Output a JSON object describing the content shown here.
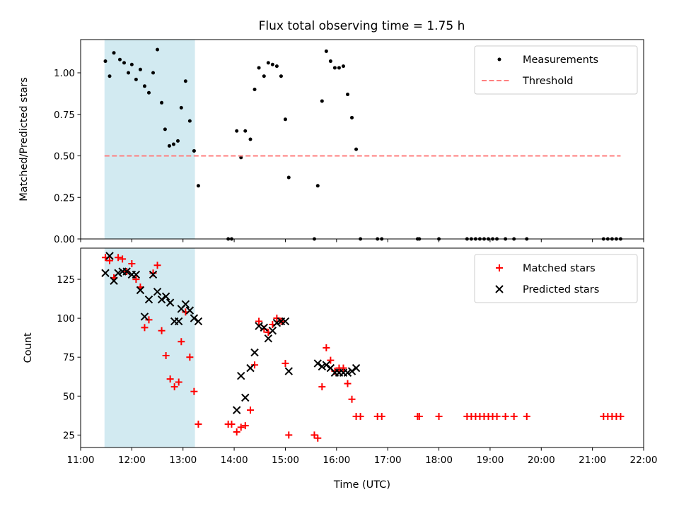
{
  "chart_data": [
    {
      "type": "scatter",
      "title": "Flux total observing time = 1.75 h",
      "xlabel": "",
      "ylabel": "Matched/Predicted stars",
      "xlim": [
        "11:00",
        "22:00"
      ],
      "ylim": [
        0,
        1.2
      ],
      "yticks": [
        "0.00",
        "0.25",
        "0.50",
        "0.75",
        "1.00"
      ],
      "highlight_span": [
        "11:28",
        "13:14"
      ],
      "highlight_color": "#add8e6",
      "legend_position": "top-right",
      "legend": [
        "Measurements",
        "Threshold"
      ],
      "series": [
        {
          "name": "Measurements",
          "color": "#000000",
          "marker": "dot",
          "points": [
            [
              "11:29",
              1.07
            ],
            [
              "11:34",
              0.98
            ],
            [
              "11:39",
              1.12
            ],
            [
              "11:46",
              1.08
            ],
            [
              "11:51",
              1.06
            ],
            [
              "11:56",
              1.0
            ],
            [
              "12:00",
              1.05
            ],
            [
              "12:05",
              0.96
            ],
            [
              "12:10",
              1.02
            ],
            [
              "12:15",
              0.92
            ],
            [
              "12:20",
              0.88
            ],
            [
              "12:25",
              1.0
            ],
            [
              "12:30",
              1.14
            ],
            [
              "12:35",
              0.82
            ],
            [
              "12:39",
              0.66
            ],
            [
              "12:44",
              0.56
            ],
            [
              "12:49",
              0.57
            ],
            [
              "12:54",
              0.59
            ],
            [
              "12:58",
              0.79
            ],
            [
              "13:03",
              0.95
            ],
            [
              "13:08",
              0.71
            ],
            [
              "13:13",
              0.53
            ],
            [
              "13:18",
              0.32
            ],
            [
              "13:53",
              0.0
            ],
            [
              "13:57",
              0.0
            ],
            [
              "14:03",
              0.65
            ],
            [
              "14:08",
              0.49
            ],
            [
              "14:13",
              0.65
            ],
            [
              "14:19",
              0.6
            ],
            [
              "14:24",
              0.9
            ],
            [
              "14:29",
              1.03
            ],
            [
              "14:35",
              0.98
            ],
            [
              "14:40",
              1.06
            ],
            [
              "14:45",
              1.05
            ],
            [
              "14:50",
              1.04
            ],
            [
              "14:55",
              0.98
            ],
            [
              "15:00",
              0.72
            ],
            [
              "15:04",
              0.37
            ],
            [
              "15:34",
              0.0
            ],
            [
              "15:38",
              0.32
            ],
            [
              "15:43",
              0.83
            ],
            [
              "15:48",
              1.13
            ],
            [
              "15:53",
              1.07
            ],
            [
              "15:58",
              1.03
            ],
            [
              "16:03",
              1.03
            ],
            [
              "16:08",
              1.04
            ],
            [
              "16:13",
              0.87
            ],
            [
              "16:18",
              0.73
            ],
            [
              "16:23",
              0.54
            ],
            [
              "16:28",
              0.0
            ],
            [
              "16:48",
              0.0
            ],
            [
              "16:53",
              0.0
            ],
            [
              "17:35",
              0.0
            ],
            [
              "17:37",
              0.0
            ],
            [
              "18:00",
              0.0
            ],
            [
              "18:33",
              0.0
            ],
            [
              "18:38",
              0.0
            ],
            [
              "18:43",
              0.0
            ],
            [
              "18:48",
              0.0
            ],
            [
              "18:53",
              0.0
            ],
            [
              "18:58",
              0.0
            ],
            [
              "19:03",
              0.0
            ],
            [
              "19:08",
              0.0
            ],
            [
              "19:18",
              0.0
            ],
            [
              "19:28",
              0.0
            ],
            [
              "19:43",
              0.0
            ],
            [
              "21:13",
              0.0
            ],
            [
              "21:18",
              0.0
            ],
            [
              "21:23",
              0.0
            ],
            [
              "21:28",
              0.0
            ],
            [
              "21:33",
              0.0
            ]
          ]
        },
        {
          "name": "Threshold",
          "color": "#ff7f7f",
          "style": "dashed",
          "points": [
            [
              "11:28",
              0.5
            ],
            [
              "21:33",
              0.5
            ]
          ]
        }
      ]
    },
    {
      "type": "scatter",
      "title": "",
      "xlabel": "Time (UTC)",
      "ylabel": "Count",
      "xlim": [
        "11:00",
        "22:00"
      ],
      "ylim": [
        17,
        145
      ],
      "xticks": [
        "11:00",
        "12:00",
        "13:00",
        "14:00",
        "15:00",
        "16:00",
        "17:00",
        "18:00",
        "19:00",
        "20:00",
        "21:00",
        "22:00"
      ],
      "yticks": [
        "25",
        "50",
        "75",
        "100",
        "125"
      ],
      "highlight_span": [
        "11:28",
        "13:14"
      ],
      "highlight_color": "#add8e6",
      "legend_position": "top-right",
      "legend": [
        "Matched stars",
        "Predicted stars"
      ],
      "series": [
        {
          "name": "Matched stars",
          "color": "#ff0000",
          "marker": "plus",
          "points": [
            [
              "11:29",
              139
            ],
            [
              "11:34",
              137
            ],
            [
              "11:39",
              126
            ],
            [
              "11:44",
              139
            ],
            [
              "11:49",
              138
            ],
            [
              "11:54",
              130
            ],
            [
              "12:00",
              135
            ],
            [
              "12:05",
              125
            ],
            [
              "12:10",
              120
            ],
            [
              "12:15",
              94
            ],
            [
              "12:20",
              99
            ],
            [
              "12:25",
              129
            ],
            [
              "12:30",
              134
            ],
            [
              "12:35",
              92
            ],
            [
              "12:40",
              76
            ],
            [
              "12:45",
              61
            ],
            [
              "12:50",
              56
            ],
            [
              "12:55",
              59
            ],
            [
              "12:58",
              85
            ],
            [
              "13:03",
              104
            ],
            [
              "13:08",
              75
            ],
            [
              "13:13",
              53
            ],
            [
              "13:18",
              32
            ],
            [
              "13:53",
              32
            ],
            [
              "13:57",
              32
            ],
            [
              "14:03",
              27
            ],
            [
              "14:08",
              30
            ],
            [
              "14:13",
              31
            ],
            [
              "14:19",
              41
            ],
            [
              "14:24",
              70
            ],
            [
              "14:29",
              98
            ],
            [
              "14:35",
              93
            ],
            [
              "14:40",
              91
            ],
            [
              "14:45",
              96
            ],
            [
              "14:50",
              100
            ],
            [
              "14:55",
              98
            ],
            [
              "15:00",
              71
            ],
            [
              "15:04",
              25
            ],
            [
              "15:34",
              25
            ],
            [
              "15:38",
              23
            ],
            [
              "15:43",
              56
            ],
            [
              "15:48",
              81
            ],
            [
              "15:53",
              73
            ],
            [
              "15:58",
              66
            ],
            [
              "16:03",
              68
            ],
            [
              "16:08",
              68
            ],
            [
              "16:13",
              58
            ],
            [
              "16:18",
              48
            ],
            [
              "16:23",
              37
            ],
            [
              "16:28",
              37
            ],
            [
              "16:48",
              37
            ],
            [
              "16:53",
              37
            ],
            [
              "17:35",
              37
            ],
            [
              "17:37",
              37
            ],
            [
              "18:00",
              37
            ],
            [
              "18:33",
              37
            ],
            [
              "18:38",
              37
            ],
            [
              "18:43",
              37
            ],
            [
              "18:48",
              37
            ],
            [
              "18:53",
              37
            ],
            [
              "18:58",
              37
            ],
            [
              "19:03",
              37
            ],
            [
              "19:08",
              37
            ],
            [
              "19:18",
              37
            ],
            [
              "19:28",
              37
            ],
            [
              "19:43",
              37
            ],
            [
              "21:13",
              37
            ],
            [
              "21:18",
              37
            ],
            [
              "21:23",
              37
            ],
            [
              "21:28",
              37
            ],
            [
              "21:33",
              37
            ]
          ]
        },
        {
          "name": "Predicted stars",
          "color": "#000000",
          "marker": "x",
          "points": [
            [
              "11:29",
              129
            ],
            [
              "11:34",
              140
            ],
            [
              "11:39",
              124
            ],
            [
              "11:44",
              129
            ],
            [
              "11:49",
              130
            ],
            [
              "11:54",
              130
            ],
            [
              "12:00",
              128
            ],
            [
              "12:05",
              128
            ],
            [
              "12:10",
              118
            ],
            [
              "12:15",
              101
            ],
            [
              "12:20",
              112
            ],
            [
              "12:25",
              128
            ],
            [
              "12:30",
              117
            ],
            [
              "12:35",
              112
            ],
            [
              "12:40",
              114
            ],
            [
              "12:45",
              110
            ],
            [
              "12:50",
              98
            ],
            [
              "12:55",
              98
            ],
            [
              "12:58",
              106
            ],
            [
              "13:03",
              109
            ],
            [
              "13:08",
              105
            ],
            [
              "13:13",
              100
            ],
            [
              "13:18",
              98
            ],
            [
              "14:03",
              41
            ],
            [
              "14:08",
              63
            ],
            [
              "14:13",
              49
            ],
            [
              "14:19",
              68
            ],
            [
              "14:24",
              78
            ],
            [
              "14:29",
              95
            ],
            [
              "14:35",
              94
            ],
            [
              "14:40",
              87
            ],
            [
              "14:45",
              92
            ],
            [
              "14:50",
              97
            ],
            [
              "14:55",
              98
            ],
            [
              "15:00",
              98
            ],
            [
              "15:04",
              66
            ],
            [
              "15:38",
              71
            ],
            [
              "15:43",
              69
            ],
            [
              "15:48",
              70
            ],
            [
              "15:53",
              68
            ],
            [
              "15:58",
              65
            ],
            [
              "16:03",
              65
            ],
            [
              "16:08",
              65
            ],
            [
              "16:13",
              65
            ],
            [
              "16:18",
              66
            ],
            [
              "16:23",
              68
            ]
          ]
        }
      ]
    }
  ]
}
